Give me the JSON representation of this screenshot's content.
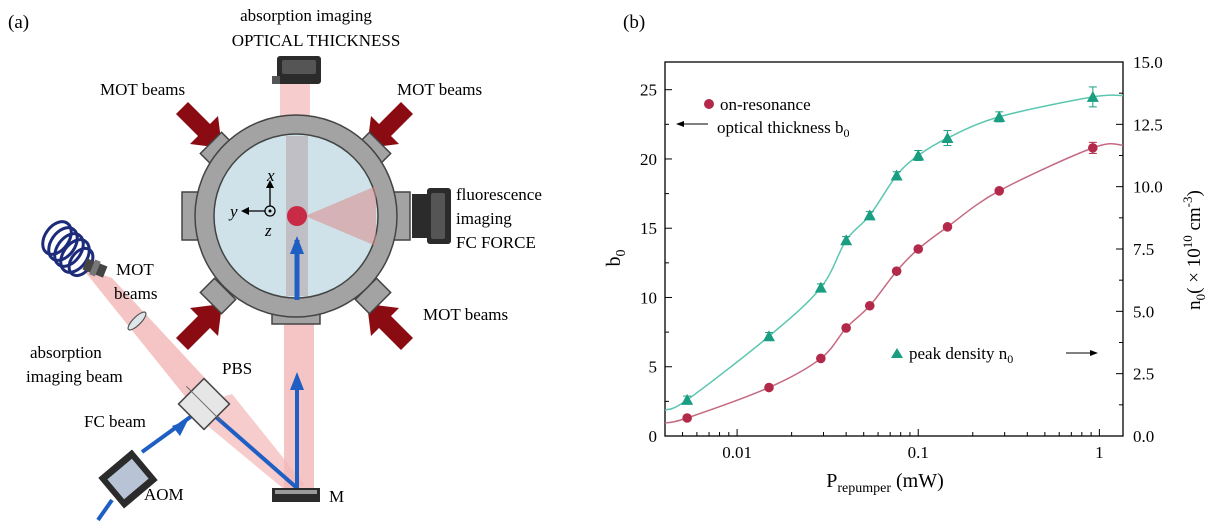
{
  "colors": {
    "chamber_outer": "#a3a3a3",
    "chamber_inner": "#cfe2ea",
    "laser_pink": "#f2b6b6",
    "mot_arrow": "#8b0b12",
    "fc_beam": "#1f5fc4",
    "atom_cloud": "#c8102e",
    "camera_dark": "#2b2b2b",
    "series_b0": "#b3294a",
    "series_n0": "#1a9e82",
    "fit_b0": "#c46a80",
    "fit_n0": "#5cc7b0"
  },
  "panel_a": {
    "label": "(a)",
    "top_camera": {
      "line1": "absorption imaging",
      "line2": "OPTICAL THICKNESS"
    },
    "side_camera": {
      "line1": "fluorescence",
      "line2": "imaging",
      "line3": "FC FORCE"
    },
    "mot_top_left": "MOT beams",
    "mot_top_right": "MOT beams",
    "mot_bottom_left": {
      "line1": "MOT",
      "line2": "beams"
    },
    "mot_bottom_right": "MOT beams",
    "axes": {
      "x": "x",
      "y": "y",
      "z": "z"
    },
    "absorption_beam": {
      "line1": "absorption",
      "line2": "imaging beam"
    },
    "pbs": "PBS",
    "fc_beam": "FC beam",
    "aom": "AOM",
    "mirror": "M"
  },
  "panel_b": {
    "label": "(b)",
    "chart_data": {
      "type": "scatter",
      "xlabel_main": "P",
      "xlabel_sub": "repumper",
      "xlabel_unit": " (mW)",
      "x_scale": "log",
      "xlim": [
        0.004,
        1.35
      ],
      "x_ticks": [
        0.01,
        0.1,
        1
      ],
      "x_tick_labels": [
        "0.01",
        "0.1",
        "1"
      ],
      "ylabel_left_main": "b",
      "ylabel_left_sub": "0",
      "ylim_left": [
        0,
        27
      ],
      "y_ticks_left": [
        0,
        5,
        10,
        15,
        20,
        25
      ],
      "ylabel_right_main": "n",
      "ylabel_right_sub": "0",
      "ylabel_right_mid": "( × 10",
      "ylabel_right_sup1": "10",
      "ylabel_right_unit": " cm",
      "ylabel_right_sup2": "-3",
      "ylabel_right_close": ")",
      "ylim_right": [
        0,
        15
      ],
      "y_ticks_right": [
        "0.0",
        "2.5",
        "5.0",
        "7.5",
        "10.0",
        "12.5",
        "15.0"
      ],
      "grid": false,
      "series": [
        {
          "name_line1": "on-resonance",
          "name_line2": "optical thickness b",
          "name_sub": "0",
          "axis": "left",
          "marker": "circle",
          "x": [
            0.0053,
            0.015,
            0.029,
            0.04,
            0.054,
            0.076,
            0.1,
            0.145,
            0.28,
            0.92
          ],
          "y": [
            1.3,
            3.5,
            5.6,
            7.8,
            9.4,
            11.9,
            13.5,
            15.1,
            17.7,
            20.8
          ],
          "err": [
            0,
            0,
            0,
            0,
            0,
            0,
            0,
            0,
            0,
            0.4
          ]
        },
        {
          "name_line1": "peak density n",
          "name_sub": "0",
          "axis": "right",
          "marker": "triangle",
          "x": [
            0.0053,
            0.015,
            0.029,
            0.04,
            0.054,
            0.076,
            0.1,
            0.145,
            0.28,
            0.92
          ],
          "y": [
            1.45,
            4.0,
            5.95,
            7.85,
            8.85,
            10.45,
            11.25,
            11.95,
            12.8,
            13.6
          ],
          "err": [
            0.15,
            0.15,
            0.15,
            0.15,
            0.15,
            0.15,
            0.2,
            0.3,
            0.2,
            0.4
          ]
        }
      ]
    }
  }
}
